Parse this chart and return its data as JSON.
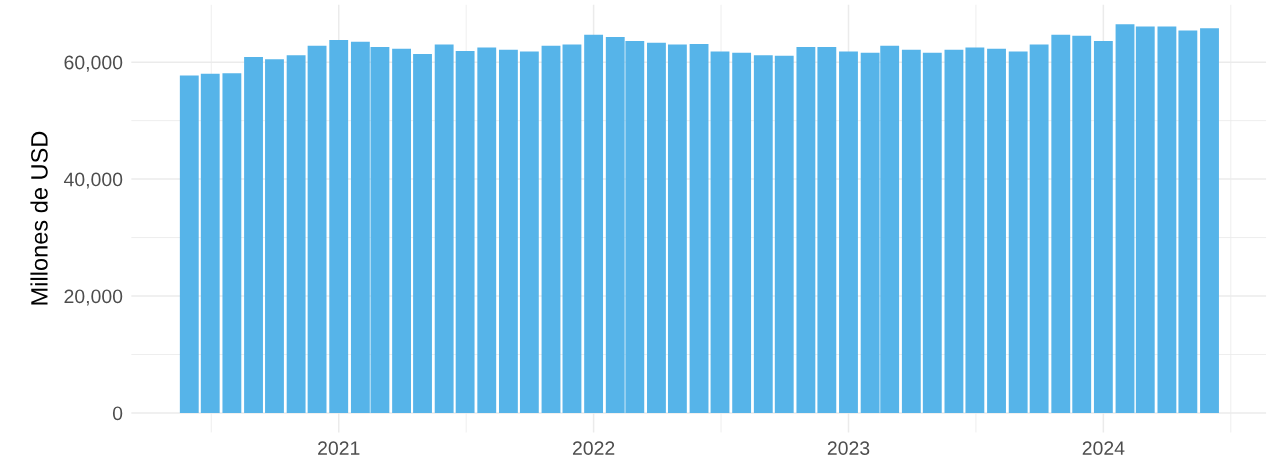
{
  "chart_data": {
    "type": "bar",
    "ylabel": "Millones de USD",
    "color": "#56b4e9",
    "x": [
      "2020-06",
      "2020-07",
      "2020-08",
      "2020-09",
      "2020-10",
      "2020-11",
      "2020-12",
      "2021-01",
      "2021-02",
      "2021-03",
      "2021-04",
      "2021-05",
      "2021-06",
      "2021-07",
      "2021-08",
      "2021-09",
      "2021-10",
      "2021-11",
      "2021-12",
      "2022-01",
      "2022-02",
      "2022-03",
      "2022-04",
      "2022-05",
      "2022-06",
      "2022-07",
      "2022-08",
      "2022-09",
      "2022-10",
      "2022-11",
      "2022-12",
      "2023-01",
      "2023-02",
      "2023-03",
      "2023-04",
      "2023-05",
      "2023-06",
      "2023-07",
      "2023-08",
      "2023-09",
      "2023-10",
      "2023-11",
      "2023-12",
      "2024-01",
      "2024-02",
      "2024-03",
      "2024-04",
      "2024-05",
      "2024-06"
    ],
    "values": [
      57700,
      58000,
      58100,
      60900,
      60500,
      61200,
      62800,
      63800,
      63500,
      62600,
      62300,
      61400,
      63000,
      61900,
      62500,
      62100,
      61800,
      62800,
      63000,
      64700,
      64300,
      63600,
      63300,
      63000,
      63100,
      61800,
      61600,
      61200,
      61100,
      62600,
      62600,
      61800,
      61600,
      62800,
      62100,
      61600,
      62100,
      62500,
      62300,
      61800,
      63000,
      64700,
      64500,
      63600,
      66500,
      66100,
      66100,
      65400,
      65800
    ],
    "xlim": [
      "2020-03-10",
      "2024-08-21"
    ],
    "xticks": [
      {
        "value": "2021-01-01",
        "label": "2021"
      },
      {
        "value": "2022-01-01",
        "label": "2022"
      },
      {
        "value": "2023-01-01",
        "label": "2023"
      },
      {
        "value": "2024-01-01",
        "label": "2024"
      }
    ],
    "ylim": [
      -3325,
      69825
    ],
    "yticks": [
      0,
      {
        "value": 20000,
        "label": "20,000"
      },
      {
        "value": 40000,
        "label": "40,000"
      },
      {
        "value": 60000,
        "label": "60,000"
      }
    ],
    "grid": true
  }
}
